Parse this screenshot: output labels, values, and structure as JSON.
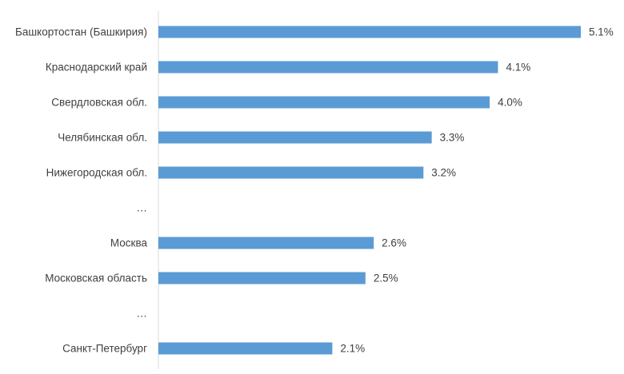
{
  "chart_data": {
    "type": "bar",
    "orientation": "horizontal",
    "categories": [
      "Башкортостан (Башкирия)",
      "Краснодарский край",
      "Свердловская обл.",
      "Челябинская обл.",
      "Нижегородская обл.",
      "…",
      "Москва",
      "Московская область",
      "…",
      "Санкт-Петербург"
    ],
    "values": [
      5.1,
      4.1,
      4.0,
      3.3,
      3.2,
      null,
      2.6,
      2.5,
      null,
      2.1
    ],
    "value_labels": [
      "5.1%",
      "4.1%",
      "4.0%",
      "3.3%",
      "3.2%",
      "",
      "2.6%",
      "2.5%",
      "",
      "2.1%"
    ],
    "bar_color": "#5b9bd5",
    "xlim": [
      0,
      5.1
    ],
    "grid": false,
    "legend": "none"
  }
}
